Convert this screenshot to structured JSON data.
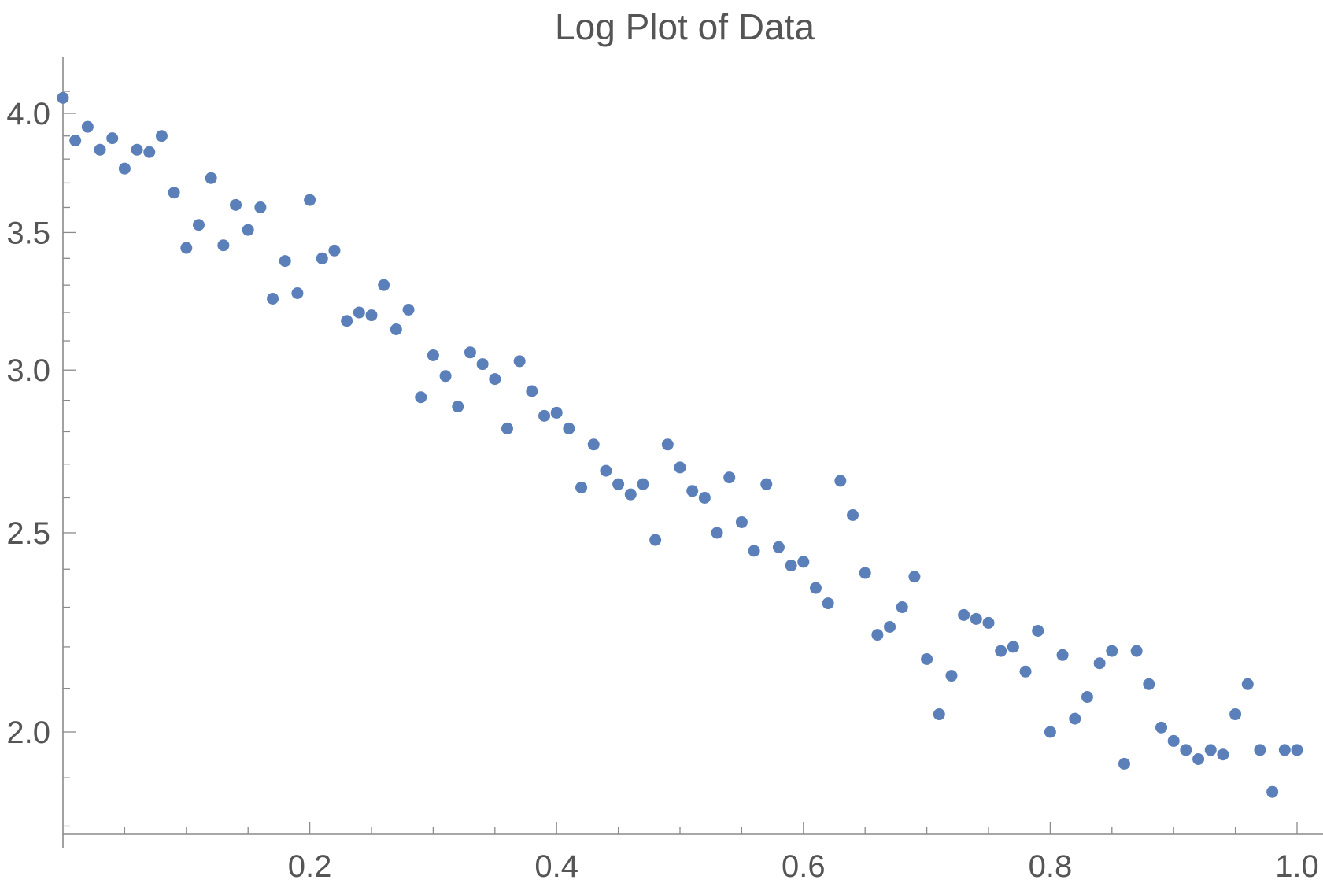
{
  "chart_data": {
    "type": "scatter",
    "title": "Log Plot of Data",
    "xlabel": "",
    "ylabel": "",
    "scale": "log-y",
    "xlim": [
      0,
      1.0
    ],
    "ylim": [
      1.75,
      4.2
    ],
    "grid": false,
    "legend": "none",
    "marker_color": "#5B7FB8",
    "x_ticks": [
      {
        "value": 0.2,
        "label": "0.2"
      },
      {
        "value": 0.4,
        "label": "0.4"
      },
      {
        "value": 0.6,
        "label": "0.6"
      },
      {
        "value": 0.8,
        "label": "0.8"
      },
      {
        "value": 1.0,
        "label": "1.0"
      }
    ],
    "x_minor_ticks": [
      0.05,
      0.1,
      0.15,
      0.25,
      0.3,
      0.35,
      0.45,
      0.5,
      0.55,
      0.65,
      0.7,
      0.75,
      0.85,
      0.9,
      0.95
    ],
    "y_ticks": [
      {
        "value": 2.0,
        "label": "2.0"
      },
      {
        "value": 2.5,
        "label": "2.5"
      },
      {
        "value": 3.0,
        "label": "3.0"
      },
      {
        "value": 3.5,
        "label": "3.5"
      },
      {
        "value": 4.0,
        "label": "4.0"
      }
    ],
    "y_minor_ticks": [
      1.8,
      1.9,
      2.1,
      2.2,
      2.3,
      2.4,
      2.6,
      2.7,
      2.8,
      2.9,
      3.1,
      3.2,
      3.3,
      3.4,
      3.6,
      3.7,
      3.8,
      3.9,
      4.1
    ],
    "series": [
      {
        "name": "data",
        "x": [
          0.0,
          0.01,
          0.02,
          0.03,
          0.04,
          0.05,
          0.06,
          0.07,
          0.08,
          0.09,
          0.1,
          0.11,
          0.12,
          0.13,
          0.14,
          0.15,
          0.16,
          0.17,
          0.18,
          0.19,
          0.2,
          0.21,
          0.22,
          0.23,
          0.24,
          0.25,
          0.26,
          0.27,
          0.28,
          0.29,
          0.3,
          0.31,
          0.32,
          0.33,
          0.34,
          0.35,
          0.36,
          0.37,
          0.38,
          0.39,
          0.4,
          0.41,
          0.42,
          0.43,
          0.44,
          0.45,
          0.46,
          0.47,
          0.48,
          0.49,
          0.5,
          0.51,
          0.52,
          0.53,
          0.54,
          0.55,
          0.56,
          0.57,
          0.58,
          0.59,
          0.6,
          0.61,
          0.62,
          0.63,
          0.64,
          0.65,
          0.66,
          0.67,
          0.68,
          0.69,
          0.7,
          0.71,
          0.72,
          0.73,
          0.74,
          0.75,
          0.76,
          0.77,
          0.78,
          0.79,
          0.8,
          0.81,
          0.82,
          0.83,
          0.84,
          0.85,
          0.86,
          0.87,
          0.88,
          0.89,
          0.9,
          0.91,
          0.92,
          0.93,
          0.94,
          0.95,
          0.96,
          0.97,
          0.98,
          0.99,
          1.0
        ],
        "y": [
          4.07,
          3.88,
          3.94,
          3.84,
          3.89,
          3.76,
          3.84,
          3.83,
          3.9,
          3.66,
          3.44,
          3.53,
          3.72,
          3.45,
          3.61,
          3.51,
          3.6,
          3.25,
          3.39,
          3.27,
          3.63,
          3.4,
          3.43,
          3.17,
          3.2,
          3.19,
          3.3,
          3.14,
          3.21,
          2.91,
          3.05,
          2.98,
          2.88,
          3.06,
          3.02,
          2.97,
          2.81,
          3.03,
          2.93,
          2.85,
          2.86,
          2.81,
          2.63,
          2.76,
          2.68,
          2.64,
          2.61,
          2.64,
          2.48,
          2.76,
          2.69,
          2.62,
          2.6,
          2.5,
          2.66,
          2.53,
          2.45,
          2.64,
          2.46,
          2.41,
          2.42,
          2.35,
          2.31,
          2.65,
          2.55,
          2.39,
          2.23,
          2.25,
          2.3,
          2.38,
          2.17,
          2.04,
          2.13,
          2.28,
          2.27,
          2.26,
          2.19,
          2.2,
          2.14,
          2.24,
          2.0,
          2.18,
          2.03,
          2.08,
          2.16,
          2.19,
          1.93,
          2.19,
          2.11,
          2.01,
          1.98,
          1.96,
          1.94,
          1.96,
          1.95,
          2.04,
          2.11,
          1.96,
          1.87,
          1.96,
          1.96
        ]
      }
    ]
  }
}
